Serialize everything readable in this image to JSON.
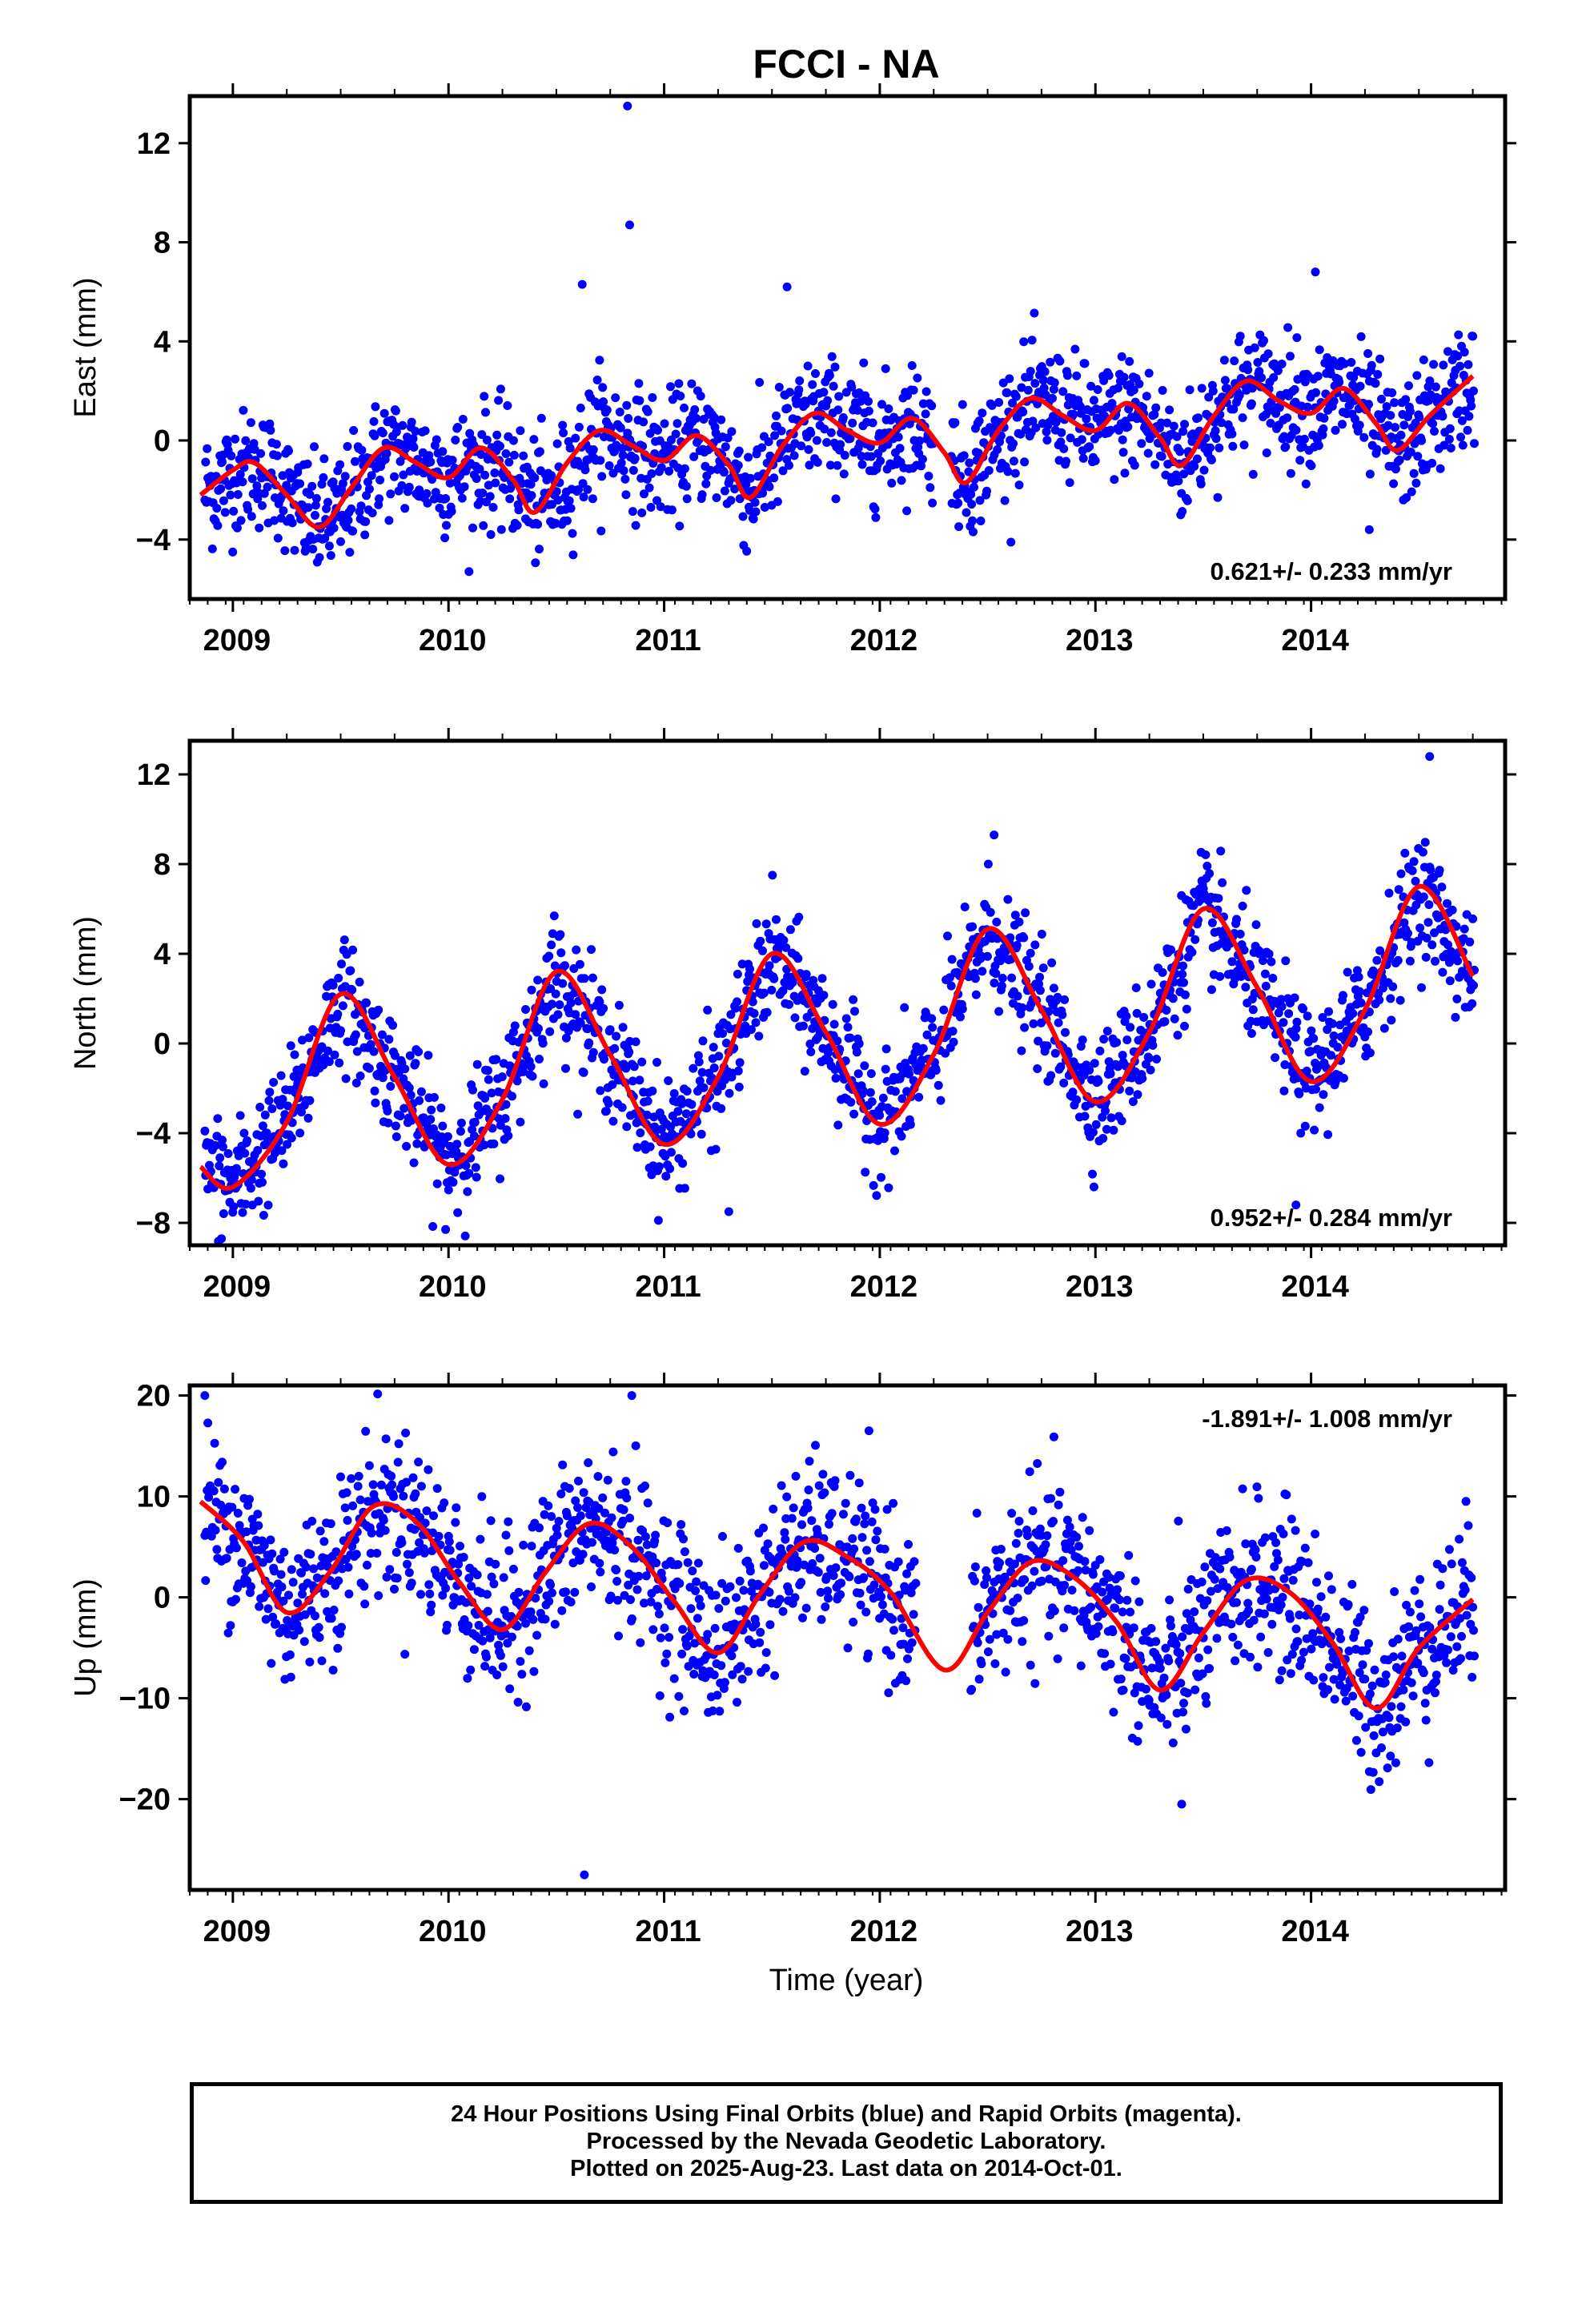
{
  "title": "FCCI - NA",
  "xlabel": "Time (year)",
  "colors": {
    "data": "#0000ff",
    "fit": "#ff0000",
    "frame": "#000000"
  },
  "caption": [
    "24 Hour Positions Using Final Orbits (blue) and Rapid Orbits (magenta).",
    "Processed by the Nevada Geodetic Laboratory.",
    "Plotted on 2025-Aug-23. Last data on 2014-Oct-01."
  ],
  "chart_data": [
    {
      "type": "scatter",
      "name": "east",
      "ylabel": "East (mm)",
      "rate_label": "0.621+/- 0.233 mm/yr",
      "rate_position": "bottom-right",
      "xlim": [
        2008.8,
        2014.9
      ],
      "ylim": [
        -6.4,
        13.9
      ],
      "yticks": [
        -4,
        0,
        4,
        8,
        12
      ],
      "xticks": [
        2009,
        2010,
        2011,
        2012,
        2013,
        2014
      ],
      "grid": false,
      "series_fit": {
        "type": "line",
        "x": [
          2008.85,
          2009.0,
          2009.1,
          2009.25,
          2009.4,
          2009.55,
          2009.7,
          2009.85,
          2010.0,
          2010.15,
          2010.3,
          2010.4,
          2010.55,
          2010.7,
          2010.85,
          2011.0,
          2011.15,
          2011.3,
          2011.4,
          2011.55,
          2011.7,
          2011.85,
          2012.0,
          2012.15,
          2012.3,
          2012.4,
          2012.55,
          2012.7,
          2012.85,
          2013.0,
          2013.15,
          2013.3,
          2013.4,
          2013.55,
          2013.7,
          2013.85,
          2014.0,
          2014.15,
          2014.3,
          2014.4,
          2014.55,
          2014.75
        ],
        "y": [
          -2.2,
          -1.2,
          -0.9,
          -2.2,
          -3.5,
          -1.9,
          -0.3,
          -0.9,
          -1.5,
          -0.3,
          -1.6,
          -2.9,
          -0.9,
          0.4,
          -0.2,
          -0.8,
          0.2,
          -1.0,
          -2.3,
          -0.2,
          1.1,
          0.4,
          -0.1,
          0.9,
          -0.5,
          -1.7,
          0.4,
          1.7,
          1.0,
          0.4,
          1.5,
          0.1,
          -1.0,
          1.0,
          2.4,
          1.6,
          1.1,
          2.1,
          0.7,
          -0.4,
          1.0,
          2.6
        ]
      },
      "scatter_anchors": {
        "x": [
          2008.9,
          2009.0,
          2009.2,
          2009.3,
          2009.5,
          2009.7,
          2009.9,
          2010.1,
          2010.3,
          2010.5,
          2010.7,
          2010.8,
          2011.0,
          2011.2,
          2011.4,
          2011.6,
          2011.8,
          2012.0,
          2012.2,
          2012.4,
          2012.6,
          2012.8,
          2013.0,
          2013.2,
          2013.4,
          2013.6,
          2013.8,
          2014.0,
          2014.2,
          2014.4,
          2014.6,
          2014.75
        ],
        "y": [
          -2,
          -1.5,
          -1,
          -3,
          -3.5,
          -0.5,
          -1,
          -1.5,
          -1.2,
          -3,
          0.5,
          0,
          -0.8,
          0.2,
          -2,
          0.5,
          1,
          -0.2,
          0.8,
          -1.5,
          0.5,
          1.5,
          0.5,
          1.2,
          -1,
          1.5,
          2.3,
          1.5,
          1.8,
          -0.5,
          1,
          2.5
        ],
        "outliers": [
          [
            2010.62,
            6.3
          ],
          [
            2010.83,
            13.5
          ],
          [
            2010.84,
            8.7
          ],
          [
            2011.57,
            6.2
          ],
          [
            2014.02,
            6.8
          ],
          [
            2014.27,
            -3.6
          ]
        ]
      }
    },
    {
      "type": "scatter",
      "name": "north",
      "ylabel": "North (mm)",
      "rate_label": "0.952+/- 0.284 mm/yr",
      "rate_position": "bottom-right",
      "xlim": [
        2008.8,
        2014.9
      ],
      "ylim": [
        -9,
        13.5
      ],
      "yticks": [
        -8,
        -4,
        0,
        4,
        8,
        12
      ],
      "xticks": [
        2009,
        2010,
        2011,
        2012,
        2013,
        2014
      ],
      "grid": false,
      "series_fit": {
        "type": "line",
        "x": [
          2008.85,
          2009.0,
          2009.25,
          2009.5,
          2009.75,
          2010.0,
          2010.25,
          2010.5,
          2010.75,
          2011.0,
          2011.25,
          2011.5,
          2011.75,
          2012.0,
          2012.25,
          2012.5,
          2012.75,
          2013.0,
          2013.25,
          2013.5,
          2013.75,
          2014.0,
          2014.25,
          2014.5,
          2014.75
        ],
        "y": [
          -5.5,
          -6.4,
          -3.5,
          2.2,
          -1.5,
          -5.4,
          -2.5,
          3.2,
          -0.5,
          -4.5,
          -1.5,
          4.0,
          0.5,
          -3.6,
          -0.5,
          5.1,
          1.5,
          -2.6,
          0.5,
          6.0,
          2.5,
          -1.7,
          1.5,
          7.0,
          3.0
        ]
      },
      "scatter_anchors": {
        "outliers": [
          [
            2011.3,
            -7.5
          ],
          [
            2012.53,
            9.3
          ],
          [
            2013.93,
            -7.2
          ],
          [
            2014.55,
            12.8
          ]
        ]
      }
    },
    {
      "type": "scatter",
      "name": "up",
      "ylabel": "Up (mm)",
      "rate_label": "-1.891+/- 1.008 mm/yr",
      "rate_position": "top-right",
      "xlim": [
        2008.8,
        2014.9
      ],
      "ylim": [
        -29,
        21
      ],
      "yticks": [
        -20,
        -10,
        0,
        10,
        20
      ],
      "xticks": [
        2009,
        2010,
        2011,
        2012,
        2013,
        2014
      ],
      "grid": false,
      "series_fit": {
        "type": "line",
        "x": [
          2008.85,
          2009.05,
          2009.25,
          2009.45,
          2009.65,
          2009.85,
          2010.05,
          2010.25,
          2010.45,
          2010.65,
          2010.85,
          2011.05,
          2011.25,
          2011.45,
          2011.65,
          2011.85,
          2012.05,
          2012.3,
          2012.5,
          2012.7,
          2012.9,
          2013.1,
          2013.3,
          2013.5,
          2013.7,
          2013.9,
          2014.1,
          2014.3,
          2014.5,
          2014.75
        ],
        "y": [
          9.5,
          5.5,
          -1.5,
          2.5,
          9.0,
          7.5,
          1.5,
          -3.2,
          2.5,
          7.3,
          5.0,
          -0.5,
          -5.5,
          0.5,
          5.5,
          4.0,
          0.5,
          -7.2,
          -1.5,
          3.5,
          2.0,
          -2.5,
          -9.2,
          -3.5,
          1.7,
          0.5,
          -4.5,
          -11.0,
          -5.0,
          -0.2
        ]
      },
      "scatter_anchors": {
        "outliers": [
          [
            2008.87,
            20.0
          ],
          [
            2010.63,
            -27.5
          ],
          [
            2010.85,
            20.0
          ],
          [
            2013.4,
            -20.5
          ]
        ]
      }
    }
  ]
}
